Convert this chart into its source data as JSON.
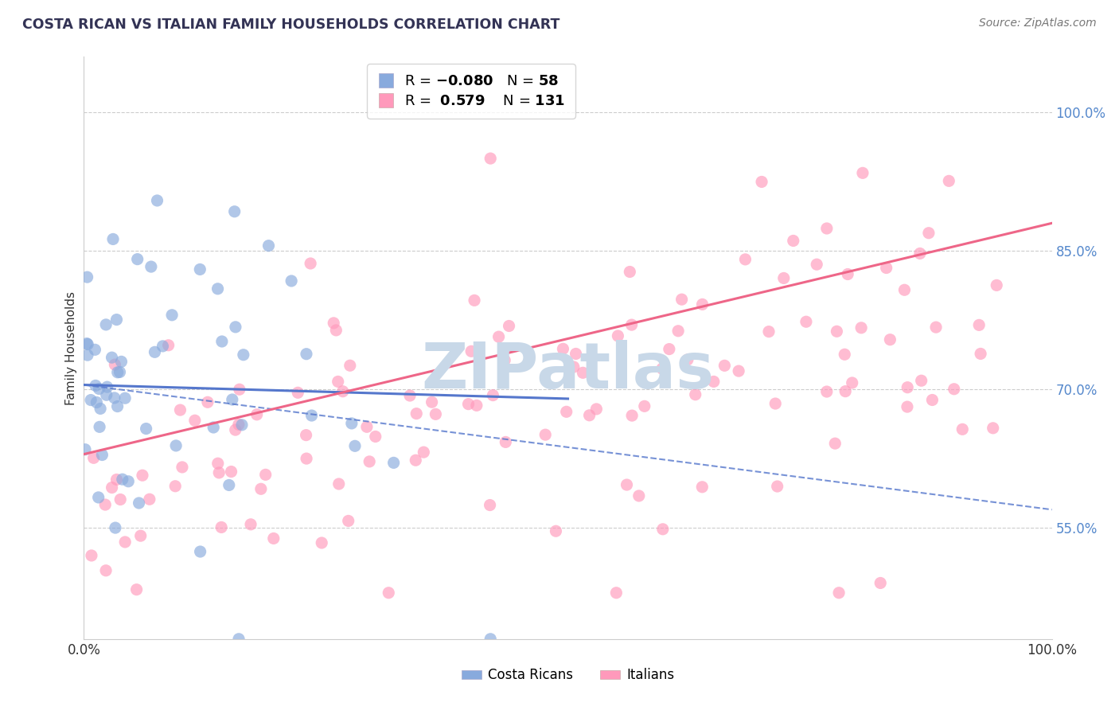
{
  "title": "COSTA RICAN VS ITALIAN FAMILY HOUSEHOLDS CORRELATION CHART",
  "source_text": "Source: ZipAtlas.com",
  "watermark": "ZIPatlas",
  "ylabel": "Family Households",
  "legend_label1": "Costa Ricans",
  "legend_label2": "Italians",
  "blue_line_color": "#5577CC",
  "pink_line_color": "#EE6688",
  "blue_scatter_color": "#88AADD",
  "pink_scatter_color": "#FF99BB",
  "blue_R": -0.08,
  "pink_R": 0.579,
  "blue_N": 58,
  "pink_N": 131,
  "background_color": "#FFFFFF",
  "grid_color": "#CCCCCC",
  "title_color": "#333355",
  "source_color": "#777777",
  "watermark_color": "#C8D8E8",
  "right_tick_color": "#5588CC",
  "xmin": 0.0,
  "xmax": 100.0,
  "ymin": 43.0,
  "ymax": 106.0,
  "ytick_vals": [
    55,
    70,
    85,
    100
  ],
  "ytick_labels": [
    "55.0%",
    "70.0%",
    "85.0%",
    "100.0%"
  ]
}
